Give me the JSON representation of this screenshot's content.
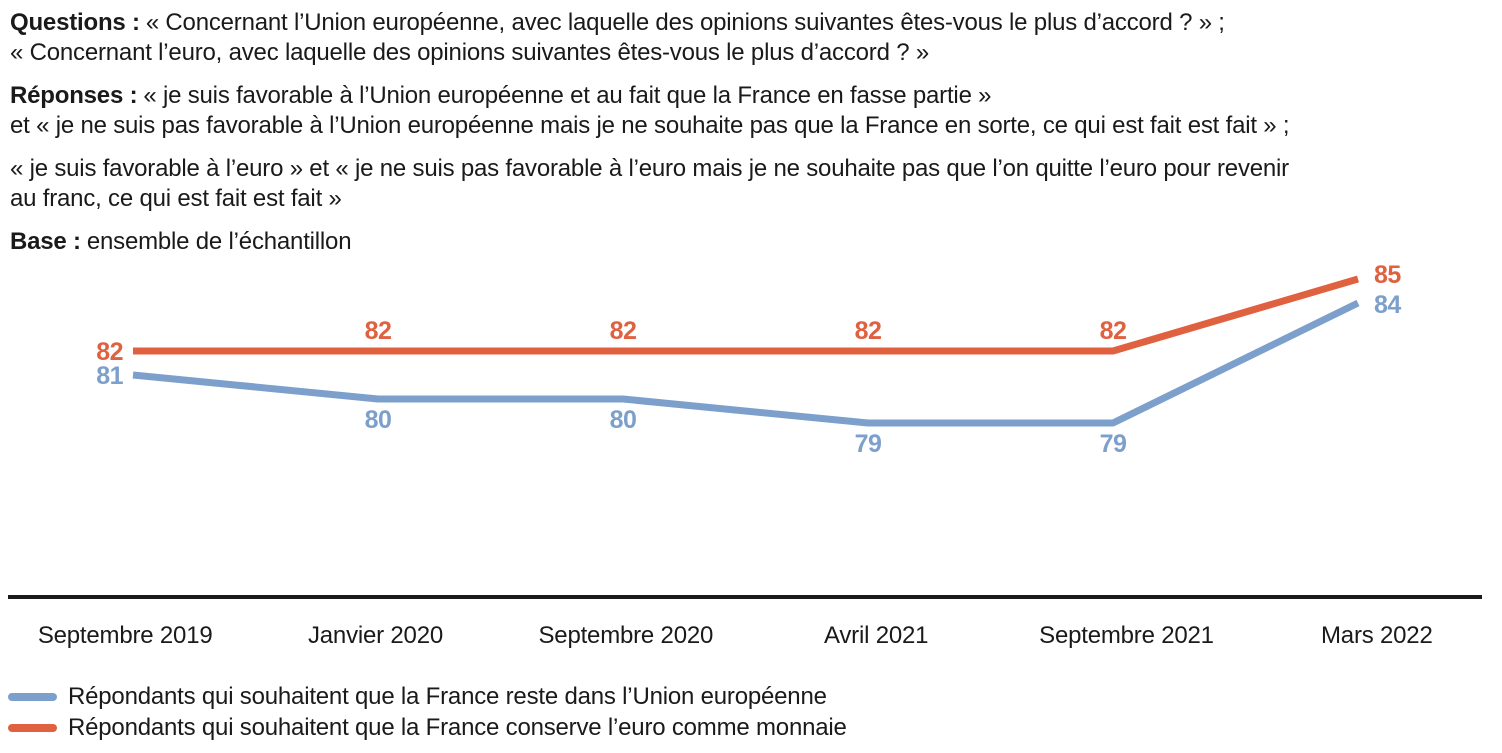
{
  "header": {
    "paragraphs": [
      {
        "label": "Questions :",
        "text": "« Concernant l’Union européenne, avec laquelle des opinions suivantes êtes-vous le plus d’accord ? » ;\n« Concernant l’euro, avec laquelle des opinions suivantes êtes-vous le plus d’accord ? »"
      },
      {
        "label": "Réponses :",
        "text": "« je suis favorable à l’Union européenne et au fait que la France en fasse partie »\net « je ne suis pas favorable à l’Union européenne mais je ne souhaite pas que la France en sorte, ce qui est fait est fait » ;"
      },
      {
        "label": "",
        "text": "« je suis favorable à l’euro » et « je ne suis pas favorable à l’euro mais je ne souhaite pas que l’on quitte l’euro pour revenir\nau franc, ce qui est fait est fait »"
      },
      {
        "label": "Base :",
        "text": "ensemble de l’échantillon"
      }
    ]
  },
  "chart_data": {
    "type": "line",
    "x_labels": [
      "Septembre 2019",
      "Janvier 2020",
      "Septembre 2020",
      "Avril 2021",
      "Septembre 2021",
      "Mars 2022"
    ],
    "series": [
      {
        "name": "Répondants qui souhaitent que la France reste dans l’Union européenne",
        "color": "#7CA0CB",
        "values": [
          81,
          80,
          80,
          79,
          79,
          84
        ],
        "label_position": "below"
      },
      {
        "name": "Répondants qui souhaitent que la France conserve l’euro comme monnaie",
        "color": "#DF6140",
        "values": [
          82,
          82,
          82,
          82,
          82,
          85
        ],
        "label_position": "above"
      }
    ],
    "ylim": [
      77,
      86
    ],
    "grid": false,
    "value_labels": true,
    "legend_position": "bottom-left"
  },
  "colors": {
    "text": "#1A1A1A",
    "axis_rule": "#1A1A1A",
    "blue_series": "#7CA0CB",
    "orange_series": "#DF6140"
  }
}
